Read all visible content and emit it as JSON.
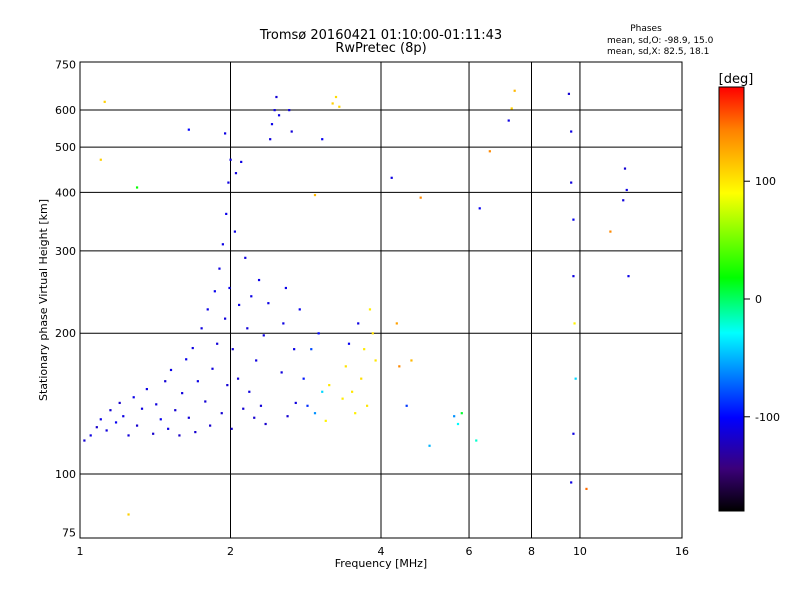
{
  "chart_data": {
    "type": "scatter",
    "title": "Tromsø 20160421 01:10:00-01:11:43",
    "subtitle": "RwPretec (8p)",
    "xlabel": "Frequency [MHz]",
    "ylabel": "Stationary phase Virtual Height [km]",
    "x_scale": "log",
    "y_scale": "log",
    "xlim": [
      1,
      16
    ],
    "ylim": [
      73,
      760
    ],
    "x_ticks": [
      1,
      2,
      4,
      6,
      8,
      10,
      16
    ],
    "y_ticks": [
      75,
      100,
      200,
      300,
      400,
      500,
      600,
      750
    ],
    "grid": true,
    "phase_header": "Phases",
    "stats": [
      "mean, sd,O:  -98.9, 15.0",
      "mean, sd,X:  82.5, 18.1"
    ],
    "colorbar": {
      "label": "[deg]",
      "range": [
        -180,
        180
      ],
      "ticks": [
        100,
        0,
        -100
      ]
    },
    "points": [
      [
        1.02,
        118,
        -115
      ],
      [
        1.05,
        121,
        -110
      ],
      [
        1.08,
        126,
        -118
      ],
      [
        1.1,
        131,
        -108
      ],
      [
        1.13,
        124,
        -112
      ],
      [
        1.15,
        137,
        -115
      ],
      [
        1.18,
        129,
        -105
      ],
      [
        1.2,
        142,
        -118
      ],
      [
        1.22,
        133,
        -110
      ],
      [
        1.25,
        121,
        -113
      ],
      [
        1.28,
        146,
        -108
      ],
      [
        1.3,
        127,
        -116
      ],
      [
        1.33,
        138,
        -111
      ],
      [
        1.36,
        152,
        -109
      ],
      [
        1.4,
        122,
        -117
      ],
      [
        1.42,
        141,
        -112
      ],
      [
        1.45,
        131,
        -106
      ],
      [
        1.48,
        158,
        -114
      ],
      [
        1.5,
        125,
        -110
      ],
      [
        1.52,
        167,
        -108
      ],
      [
        1.55,
        137,
        -115
      ],
      [
        1.58,
        121,
        -119
      ],
      [
        1.6,
        149,
        -112
      ],
      [
        1.63,
        176,
        -107
      ],
      [
        1.65,
        132,
        -113
      ],
      [
        1.68,
        186,
        -110
      ],
      [
        1.7,
        123,
        -116
      ],
      [
        1.72,
        158,
        -109
      ],
      [
        1.75,
        205,
        -111
      ],
      [
        1.78,
        143,
        -114
      ],
      [
        1.8,
        225,
        -108
      ],
      [
        1.82,
        127,
        -117
      ],
      [
        1.84,
        168,
        -112
      ],
      [
        1.86,
        246,
        -106
      ],
      [
        1.88,
        190,
        -113
      ],
      [
        1.9,
        275,
        -110
      ],
      [
        1.92,
        135,
        -115
      ],
      [
        1.93,
        310,
        -109
      ],
      [
        1.95,
        215,
        -112
      ],
      [
        1.96,
        360,
        -108
      ],
      [
        1.97,
        155,
        -114
      ],
      [
        1.98,
        420,
        -111
      ],
      [
        1.99,
        250,
        -107
      ],
      [
        2.0,
        470,
        -110
      ],
      [
        2.01,
        125,
        -116
      ],
      [
        2.02,
        185,
        -113
      ],
      [
        2.04,
        330,
        -109
      ],
      [
        2.05,
        440,
        -112
      ],
      [
        2.07,
        160,
        -114
      ],
      [
        2.08,
        230,
        -108
      ],
      [
        2.1,
        465,
        -110
      ],
      [
        2.12,
        138,
        -115
      ],
      [
        2.14,
        290,
        -111
      ],
      [
        2.16,
        205,
        -113
      ],
      [
        2.18,
        150,
        -112
      ],
      [
        2.2,
        240,
        -109
      ],
      [
        2.23,
        132,
        -116
      ],
      [
        2.25,
        175,
        -111
      ],
      [
        2.28,
        260,
        -108
      ],
      [
        2.3,
        140,
        -113
      ],
      [
        2.33,
        198,
        -110
      ],
      [
        2.35,
        128,
        -117
      ],
      [
        2.38,
        232,
        -109
      ],
      [
        2.4,
        520,
        -112
      ],
      [
        2.42,
        560,
        -108
      ],
      [
        2.45,
        600,
        -111
      ],
      [
        2.47,
        640,
        -114
      ],
      [
        2.5,
        585,
        -109
      ],
      [
        2.53,
        165,
        -112
      ],
      [
        2.55,
        210,
        -110
      ],
      [
        2.58,
        250,
        -108
      ],
      [
        2.6,
        133,
        -115
      ],
      [
        2.62,
        600,
        -111
      ],
      [
        2.65,
        540,
        -113
      ],
      [
        2.68,
        185,
        -109
      ],
      [
        2.7,
        142,
        -112
      ],
      [
        2.75,
        225,
        -106
      ],
      [
        2.8,
        160,
        -95
      ],
      [
        2.85,
        140,
        -88
      ],
      [
        2.9,
        185,
        -80
      ],
      [
        2.95,
        135,
        -60
      ],
      [
        3.0,
        200,
        -100
      ],
      [
        3.05,
        150,
        -40
      ],
      [
        3.1,
        130,
        95
      ],
      [
        3.15,
        155,
        100
      ],
      [
        3.2,
        620,
        110
      ],
      [
        3.25,
        640,
        105
      ],
      [
        3.3,
        610,
        108
      ],
      [
        3.35,
        145,
        98
      ],
      [
        3.4,
        170,
        102
      ],
      [
        3.45,
        190,
        -105
      ],
      [
        3.5,
        150,
        100
      ],
      [
        3.55,
        135,
        96
      ],
      [
        3.6,
        210,
        -110
      ],
      [
        3.65,
        160,
        104
      ],
      [
        3.7,
        185,
        99
      ],
      [
        3.75,
        140,
        101
      ],
      [
        3.8,
        225,
        97
      ],
      [
        3.85,
        200,
        103
      ],
      [
        3.9,
        175,
        100
      ],
      [
        4.2,
        430,
        -110
      ],
      [
        4.3,
        210,
        130
      ],
      [
        4.35,
        170,
        140
      ],
      [
        4.5,
        140,
        -85
      ],
      [
        4.6,
        175,
        120
      ],
      [
        5.0,
        115,
        -50
      ],
      [
        5.6,
        133,
        -60
      ],
      [
        5.7,
        128,
        -30
      ],
      [
        5.8,
        135,
        10
      ],
      [
        6.2,
        118,
        -20
      ],
      [
        6.3,
        370,
        -105
      ],
      [
        6.6,
        490,
        140
      ],
      [
        7.2,
        570,
        -110
      ],
      [
        7.3,
        605,
        110
      ],
      [
        7.4,
        660,
        120
      ],
      [
        9.5,
        650,
        -115
      ],
      [
        9.6,
        540,
        -110
      ],
      [
        9.6,
        420,
        -112
      ],
      [
        9.7,
        350,
        -105
      ],
      [
        9.7,
        265,
        -110
      ],
      [
        9.75,
        210,
        95
      ],
      [
        9.8,
        160,
        -40
      ],
      [
        9.7,
        122,
        -110
      ],
      [
        9.6,
        96,
        -110
      ],
      [
        10.3,
        93,
        150
      ],
      [
        11.5,
        330,
        140
      ],
      [
        12.3,
        450,
        -115
      ],
      [
        12.4,
        405,
        -110
      ],
      [
        12.2,
        385,
        -112
      ],
      [
        12.5,
        265,
        -108
      ],
      [
        1.25,
        82,
        110
      ],
      [
        1.12,
        625,
        110
      ],
      [
        1.1,
        470,
        110
      ],
      [
        1.3,
        410,
        20
      ],
      [
        1.95,
        535,
        -110
      ],
      [
        1.65,
        545,
        -100
      ],
      [
        2.95,
        395,
        120
      ],
      [
        4.8,
        390,
        140
      ],
      [
        3.05,
        520,
        -105
      ]
    ]
  }
}
